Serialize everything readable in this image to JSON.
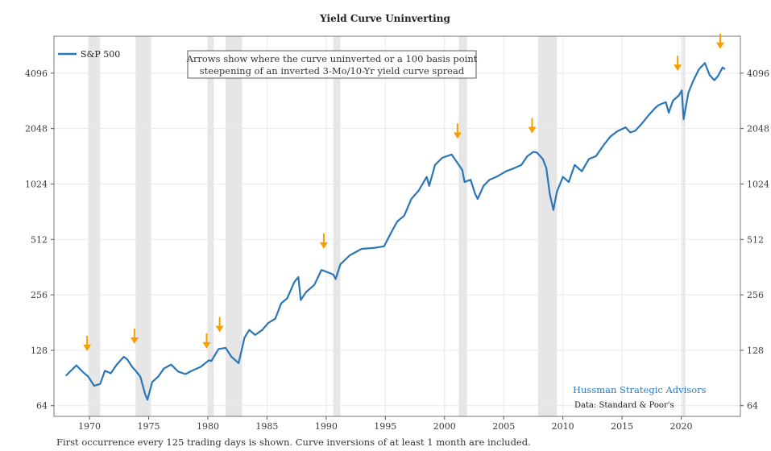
{
  "chart_data": {
    "type": "line",
    "title": "Yield Curve Uninverting",
    "xlabel": "",
    "ylabel": "",
    "yscale": "log2",
    "xlim": [
      1967.0,
      2025.0
    ],
    "ylim": [
      56,
      6500
    ],
    "x_ticks": [
      1970,
      1975,
      1980,
      1985,
      1990,
      1995,
      2000,
      2005,
      2010,
      2015,
      2020
    ],
    "y_ticks": [
      64,
      128,
      256,
      512,
      1024,
      2048,
      4096
    ],
    "y_tick_labels": [
      "64",
      "128",
      "256",
      "512",
      "1024",
      "2048",
      "4096"
    ],
    "legend": {
      "position": "top-left",
      "entries": [
        "S&P 500"
      ]
    },
    "annotation_box": {
      "line1": "Arrows show where the curve uninverted or a 100 basis point",
      "line2": "steepening of an inverted 3-Mo/10-Yr yield curve spread"
    },
    "series": [
      {
        "name": "S&P 500",
        "color": "#2a76b8",
        "x": [
          1968.0,
          1968.5,
          1968.9,
          1969.4,
          1969.9,
          1970.4,
          1970.9,
          1971.3,
          1971.8,
          1972.3,
          1972.9,
          1973.2,
          1973.6,
          1973.9,
          1974.3,
          1974.7,
          1974.9,
          1975.3,
          1975.8,
          1976.3,
          1976.9,
          1977.5,
          1978.1,
          1978.8,
          1979.4,
          1980.1,
          1980.3,
          1980.9,
          1981.5,
          1982.0,
          1982.6,
          1983.1,
          1983.5,
          1984.0,
          1984.6,
          1985.1,
          1985.7,
          1986.2,
          1986.7,
          1987.3,
          1987.65,
          1987.85,
          1988.3,
          1989.0,
          1989.6,
          1990.1,
          1990.6,
          1990.8,
          1991.2,
          1992.0,
          1993.0,
          1994.0,
          1994.9,
          1995.5,
          1996.0,
          1996.6,
          1997.2,
          1997.8,
          1998.5,
          1998.7,
          1999.2,
          1999.8,
          2000.2,
          2000.6,
          2001.0,
          2001.5,
          2001.7,
          2002.2,
          2002.6,
          2002.8,
          2003.3,
          2003.8,
          2004.5,
          2005.2,
          2005.9,
          2006.5,
          2007.0,
          2007.5,
          2007.8,
          2008.3,
          2008.6,
          2008.9,
          2009.2,
          2009.5,
          2010.0,
          2010.5,
          2011.0,
          2011.6,
          2012.2,
          2012.8,
          2013.4,
          2014.0,
          2014.6,
          2015.3,
          2015.7,
          2016.1,
          2016.6,
          2017.2,
          2017.8,
          2018.1,
          2018.7,
          2018.95,
          2019.3,
          2019.8,
          2020.05,
          2020.2,
          2020.6,
          2021.0,
          2021.5,
          2022.0,
          2022.4,
          2022.8,
          2023.1,
          2023.5,
          2023.7
        ],
        "values": [
          93,
          100,
          106,
          98,
          92,
          82,
          84,
          99,
          96,
          107,
          118,
          114,
          104,
          99,
          92,
          74,
          69,
          86,
          92,
          102,
          107,
          98,
          95,
          100,
          104,
          113,
          112,
          130,
          132,
          118,
          109,
          150,
          165,
          155,
          165,
          180,
          190,
          230,
          245,
          300,
          320,
          240,
          265,
          290,
          350,
          340,
          330,
          312,
          375,
          420,
          455,
          460,
          470,
          560,
          640,
          690,
          850,
          940,
          1120,
          1000,
          1300,
          1420,
          1450,
          1480,
          1360,
          1220,
          1050,
          1080,
          900,
          850,
          1000,
          1080,
          1130,
          1200,
          1250,
          1300,
          1450,
          1530,
          1520,
          1400,
          1250,
          900,
          740,
          930,
          1120,
          1050,
          1300,
          1200,
          1400,
          1450,
          1650,
          1850,
          1980,
          2080,
          1950,
          1990,
          2150,
          2400,
          2650,
          2750,
          2850,
          2500,
          2900,
          3100,
          3300,
          2300,
          3200,
          3700,
          4300,
          4650,
          4000,
          3750,
          3950,
          4400,
          4300
        ],
        "label": "S&P 500"
      }
    ],
    "recession_shading": [
      [
        1969.9,
        1970.9
      ],
      [
        1973.9,
        1975.2
      ],
      [
        1980.0,
        1980.5
      ],
      [
        1981.5,
        1982.9
      ],
      [
        1990.6,
        1991.2
      ],
      [
        2001.2,
        2001.9
      ],
      [
        2007.9,
        2009.5
      ],
      [
        2020.1,
        2020.35
      ]
    ],
    "uninversion_arrows": [
      {
        "x": 1969.8,
        "y": 128
      },
      {
        "x": 1973.8,
        "y": 140
      },
      {
        "x": 1979.9,
        "y": 132
      },
      {
        "x": 1981.0,
        "y": 162
      },
      {
        "x": 1989.8,
        "y": 460
      },
      {
        "x": 2001.1,
        "y": 1820
      },
      {
        "x": 2007.4,
        "y": 1950
      },
      {
        "x": 2019.7,
        "y": 4250
      },
      {
        "x": 2023.3,
        "y": 5600
      }
    ]
  },
  "colors": {
    "series": "#2a76b8",
    "arrow": "#f5a000",
    "shading": "#e6e6e6",
    "grid": "#e8e8e8",
    "brand": "#2b7bbf"
  },
  "branding": {
    "name": "Hussman Strategic Advisors",
    "source": "Data: Standard & Poor's"
  },
  "footnote": "First occurrence every 125 trading days is shown. Curve inversions of at least 1 month are included."
}
